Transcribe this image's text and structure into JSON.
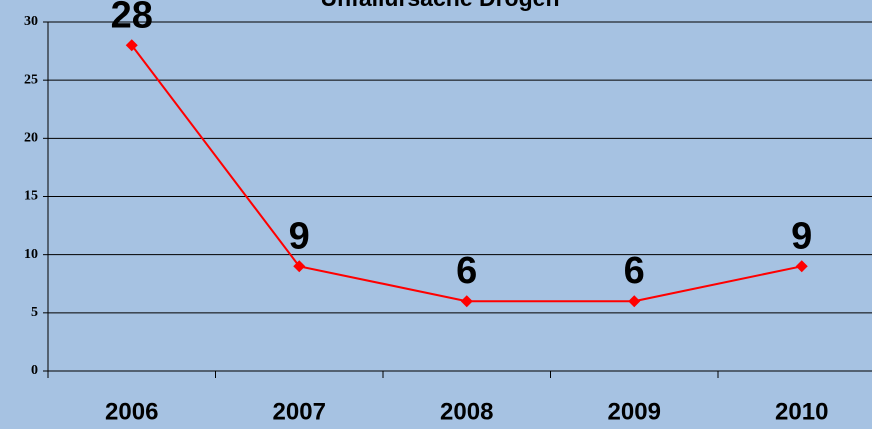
{
  "chart_data": {
    "type": "line",
    "title": "Unfallursache Drogen",
    "categories": [
      "2006",
      "2007",
      "2008",
      "2009",
      "2010"
    ],
    "values": [
      28,
      9,
      6,
      6,
      9
    ],
    "color": "#ff0000",
    "ylim": [
      0,
      30
    ],
    "yticks": [
      0,
      5,
      10,
      15,
      20,
      25,
      30
    ],
    "grid": true
  }
}
